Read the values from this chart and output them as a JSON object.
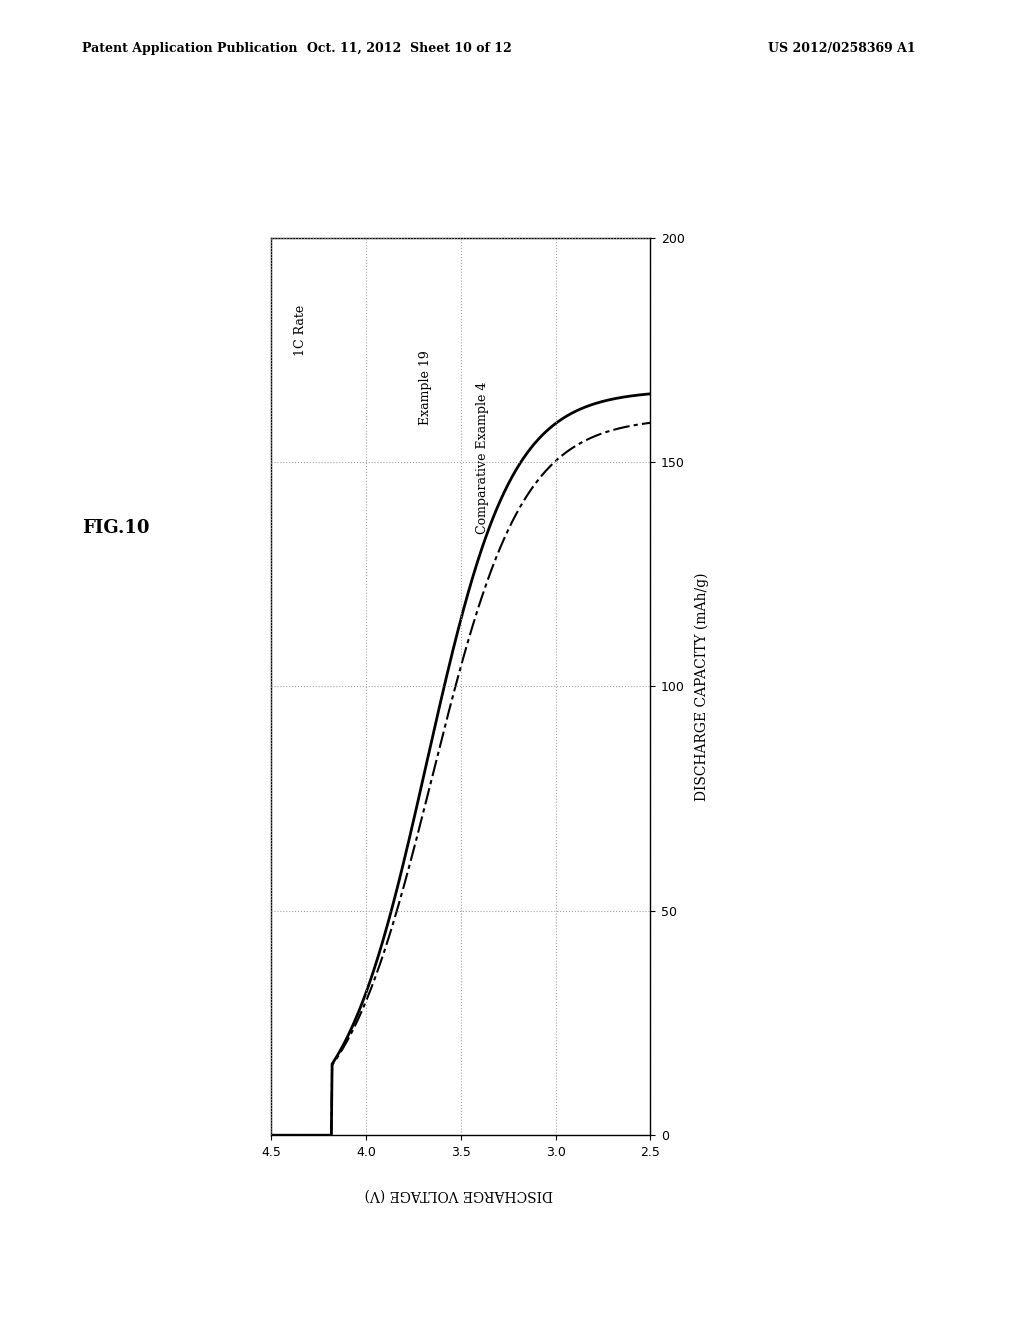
{
  "title": "FIG.10",
  "header_left": "Patent Application Publication",
  "header_center": "Oct. 11, 2012  Sheet 10 of 12",
  "header_right": "US 2012/0258369 A1",
  "xlabel": "DISCHARGE VOLTAGE (V)",
  "ylabel": "DISCHARGE CAPACITY (mAh/g)",
  "legend_label": "1C Rate",
  "series1_label": "Example 19",
  "series2_label": "Comparative Example 4",
  "xlim": [
    4.5,
    2.5
  ],
  "ylim": [
    0,
    200
  ],
  "xticks": [
    4.5,
    4.0,
    3.5,
    3.0,
    2.5
  ],
  "yticks": [
    0,
    50,
    100,
    150,
    200
  ],
  "grid_color": "#999999",
  "line_color": "#000000",
  "background": "#ffffff",
  "fontsize_header": 9,
  "fontsize_label": 10,
  "fontsize_tick": 9,
  "fontsize_title": 13,
  "fontsize_annot": 9
}
